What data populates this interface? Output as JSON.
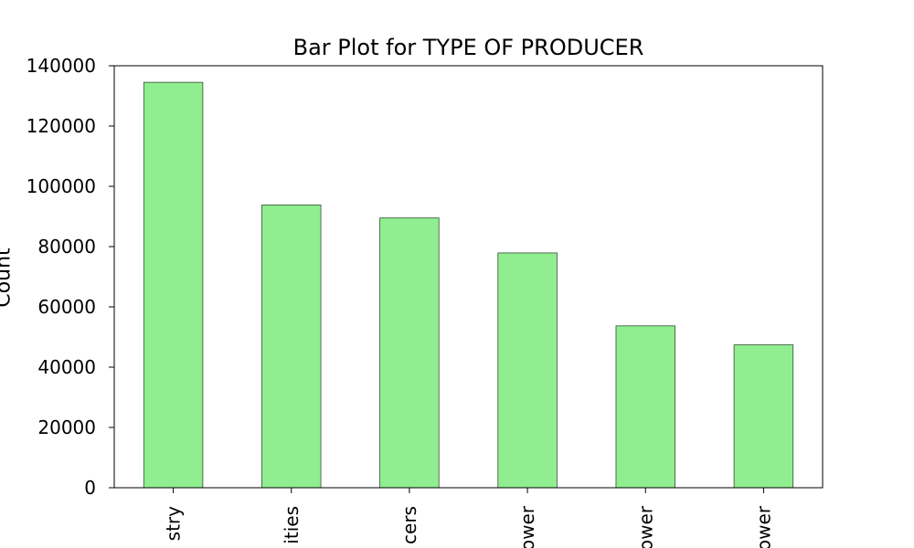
{
  "chart_data": {
    "type": "bar",
    "title": "Bar Plot for TYPE OF PRODUCER",
    "xlabel": "",
    "ylabel": "Count",
    "categories": [
      "stry",
      "ities",
      "cers",
      "ower",
      "ower",
      "ower"
    ],
    "values": [
      134500,
      93800,
      89500,
      77900,
      53700,
      47400
    ],
    "ylim": [
      0,
      140000
    ],
    "yticks": [
      0,
      20000,
      40000,
      60000,
      80000,
      100000,
      120000,
      140000
    ],
    "grid": false,
    "bar_color": "#90ee90",
    "edge_color": "#2f4f2f"
  }
}
